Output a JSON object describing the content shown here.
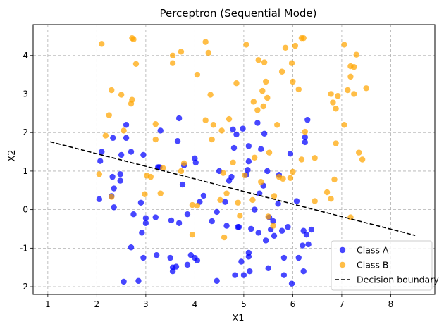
{
  "chart_data": {
    "type": "scatter",
    "title": "Perceptron (Sequential Mode)",
    "xlabel": "X1",
    "ylabel": "X2",
    "xlim": [
      0.7,
      8.9
    ],
    "ylim": [
      -2.2,
      4.8
    ],
    "xticks": [
      1,
      2,
      3,
      4,
      5,
      6,
      7,
      8
    ],
    "yticks": [
      -2,
      -1,
      0,
      1,
      2,
      3,
      4
    ],
    "grid": true,
    "legend_position": "lower-right",
    "colors": {
      "class_a": "#0000ff",
      "class_b": "#ffa500",
      "boundary": "#000000"
    },
    "series": [
      {
        "name": "Class A",
        "kind": "points",
        "points": [
          [
            2.05,
            0.27
          ],
          [
            2.07,
            1.26
          ],
          [
            2.1,
            1.5
          ],
          [
            2.3,
            0.35
          ],
          [
            2.32,
            0.85
          ],
          [
            2.33,
            1.86
          ],
          [
            2.35,
            0.55
          ],
          [
            2.35,
            0.06
          ],
          [
            2.48,
            0.92
          ],
          [
            2.48,
            0.75
          ],
          [
            2.5,
            1.42
          ],
          [
            2.55,
            -1.87
          ],
          [
            2.6,
            2.2
          ],
          [
            2.6,
            1.86
          ],
          [
            2.7,
            1.5
          ],
          [
            2.7,
            -0.98
          ],
          [
            2.75,
            -0.12
          ],
          [
            2.85,
            -1.85
          ],
          [
            2.9,
            0.18
          ],
          [
            2.92,
            -0.6
          ],
          [
            2.95,
            -1.25
          ],
          [
            2.95,
            1.42
          ],
          [
            3.0,
            -0.35
          ],
          [
            3.0,
            -0.22
          ],
          [
            3.2,
            -0.2
          ],
          [
            3.22,
            -1.18
          ],
          [
            3.25,
            1.1
          ],
          [
            3.28,
            1.1
          ],
          [
            3.3,
            2.05
          ],
          [
            3.5,
            -1.25
          ],
          [
            3.52,
            -0.28
          ],
          [
            3.55,
            -1.5
          ],
          [
            3.55,
            -1.6
          ],
          [
            3.62,
            -1.48
          ],
          [
            3.65,
            1.78
          ],
          [
            3.68,
            2.37
          ],
          [
            3.68,
            -0.35
          ],
          [
            3.75,
            0.65
          ],
          [
            3.78,
            1.15
          ],
          [
            3.85,
            -1.43
          ],
          [
            3.85,
            -0.12
          ],
          [
            3.92,
            -1.18
          ],
          [
            4.0,
            -1.25
          ],
          [
            4.0,
            1.33
          ],
          [
            4.02,
            1.22
          ],
          [
            4.05,
            -1.32
          ],
          [
            4.1,
            0.2
          ],
          [
            4.18,
            0.36
          ],
          [
            4.35,
            -0.3
          ],
          [
            4.45,
            -0.06
          ],
          [
            4.45,
            -1.85
          ],
          [
            4.5,
            1.0
          ],
          [
            4.62,
            0.2
          ],
          [
            4.65,
            -0.42
          ],
          [
            4.7,
            0.75
          ],
          [
            4.75,
            0.85
          ],
          [
            4.78,
            2.08
          ],
          [
            4.8,
            1.6
          ],
          [
            4.82,
            -1.7
          ],
          [
            4.85,
            1.95
          ],
          [
            4.88,
            -0.45
          ],
          [
            4.9,
            -0.45
          ],
          [
            4.95,
            -1.35
          ],
          [
            4.98,
            2.1
          ],
          [
            5.0,
            -1.7
          ],
          [
            5.05,
            0.9
          ],
          [
            5.08,
            1.03
          ],
          [
            5.1,
            1.65
          ],
          [
            5.1,
            1.25
          ],
          [
            5.1,
            -1.12
          ],
          [
            5.1,
            -1.22
          ],
          [
            5.12,
            -1.6
          ],
          [
            5.15,
            -0.5
          ],
          [
            5.22,
            0.0
          ],
          [
            5.28,
            2.25
          ],
          [
            5.3,
            -0.6
          ],
          [
            5.32,
            0.42
          ],
          [
            5.35,
            1.57
          ],
          [
            5.4,
            0.62
          ],
          [
            5.42,
            1.97
          ],
          [
            5.45,
            -0.8
          ],
          [
            5.48,
            1.0
          ],
          [
            5.5,
            -1.52
          ],
          [
            5.52,
            -0.2
          ],
          [
            5.55,
            -0.52
          ],
          [
            5.6,
            -0.3
          ],
          [
            5.62,
            -0.68
          ],
          [
            5.7,
            0.15
          ],
          [
            5.72,
            0.9
          ],
          [
            5.78,
            -0.55
          ],
          [
            5.82,
            -1.25
          ],
          [
            5.82,
            -1.7
          ],
          [
            5.9,
            -0.45
          ],
          [
            5.95,
            1.45
          ],
          [
            5.98,
            -1.92
          ],
          [
            6.08,
            0.22
          ],
          [
            6.12,
            -1.25
          ],
          [
            6.2,
            -0.93
          ],
          [
            6.22,
            -0.55
          ],
          [
            6.22,
            -1.6
          ],
          [
            6.25,
            1.88
          ],
          [
            6.25,
            1.75
          ],
          [
            6.28,
            -0.65
          ],
          [
            6.3,
            2.33
          ],
          [
            6.32,
            -0.9
          ],
          [
            6.38,
            -0.52
          ]
        ]
      },
      {
        "name": "Class B",
        "kind": "points",
        "points": [
          [
            2.05,
            0.92
          ],
          [
            2.1,
            4.3
          ],
          [
            2.18,
            1.92
          ],
          [
            2.25,
            2.45
          ],
          [
            2.3,
            3.1
          ],
          [
            2.3,
            0.33
          ],
          [
            2.5,
            2.98
          ],
          [
            2.55,
            2.05
          ],
          [
            2.7,
            2.75
          ],
          [
            2.72,
            4.45
          ],
          [
            2.72,
            2.85
          ],
          [
            2.75,
            4.42
          ],
          [
            2.8,
            3.78
          ],
          [
            2.98,
            0.4
          ],
          [
            3.02,
            0.88
          ],
          [
            3.1,
            0.85
          ],
          [
            3.2,
            1.82
          ],
          [
            3.2,
            2.22
          ],
          [
            3.3,
            0.42
          ],
          [
            3.35,
            1.08
          ],
          [
            3.55,
            4.0
          ],
          [
            3.55,
            3.8
          ],
          [
            3.72,
            4.1
          ],
          [
            3.72,
            1.0
          ],
          [
            3.78,
            1.2
          ],
          [
            3.95,
            0.12
          ],
          [
            3.95,
            -0.65
          ],
          [
            4.05,
            3.5
          ],
          [
            4.05,
            0.1
          ],
          [
            4.22,
            2.32
          ],
          [
            4.22,
            4.35
          ],
          [
            4.28,
            4.07
          ],
          [
            4.32,
            2.98
          ],
          [
            4.35,
            1.82
          ],
          [
            4.38,
            2.2
          ],
          [
            4.52,
            0.25
          ],
          [
            4.55,
            2.05
          ],
          [
            4.58,
            0.95
          ],
          [
            4.6,
            -0.72
          ],
          [
            4.65,
            0.42
          ],
          [
            4.7,
            2.35
          ],
          [
            4.78,
            1.22
          ],
          [
            4.85,
            3.28
          ],
          [
            4.88,
            0.18
          ],
          [
            4.92,
            -0.16
          ],
          [
            5.02,
            0.89
          ],
          [
            5.05,
            4.28
          ],
          [
            5.18,
            0.25
          ],
          [
            5.2,
            2.8
          ],
          [
            5.22,
            1.35
          ],
          [
            5.28,
            2.58
          ],
          [
            5.3,
            3.88
          ],
          [
            5.35,
            0.72
          ],
          [
            5.38,
            3.08
          ],
          [
            5.4,
            2.68
          ],
          [
            5.42,
            3.82
          ],
          [
            5.45,
            3.32
          ],
          [
            5.48,
            2.9
          ],
          [
            5.5,
            -0.18
          ],
          [
            5.52,
            1.48
          ],
          [
            5.6,
            -0.42
          ],
          [
            5.62,
            0.35
          ],
          [
            5.68,
            2.2
          ],
          [
            5.72,
            0.85
          ],
          [
            5.78,
            3.58
          ],
          [
            5.8,
            0.8
          ],
          [
            5.85,
            4.2
          ],
          [
            5.95,
            0.82
          ],
          [
            5.98,
            3.8
          ],
          [
            6.0,
            3.32
          ],
          [
            6.0,
            0.98
          ],
          [
            6.05,
            4.25
          ],
          [
            6.12,
            3.12
          ],
          [
            6.18,
            4.45
          ],
          [
            6.18,
            1.3
          ],
          [
            6.22,
            4.45
          ],
          [
            6.25,
            2.02
          ],
          [
            6.45,
            0.22
          ],
          [
            6.45,
            1.34
          ],
          [
            6.7,
            0.45
          ],
          [
            6.78,
            3.0
          ],
          [
            6.78,
            0.28
          ],
          [
            6.82,
            2.78
          ],
          [
            6.85,
            0.78
          ],
          [
            6.88,
            2.62
          ],
          [
            6.88,
            1.72
          ],
          [
            6.92,
            2.95
          ],
          [
            7.05,
            4.28
          ],
          [
            7.05,
            2.2
          ],
          [
            7.12,
            3.1
          ],
          [
            7.18,
            3.72
          ],
          [
            7.18,
            3.45
          ],
          [
            7.18,
            -0.2
          ],
          [
            7.25,
            3.7
          ],
          [
            7.25,
            3.0
          ],
          [
            7.3,
            4.02
          ],
          [
            7.35,
            1.48
          ],
          [
            7.42,
            1.3
          ],
          [
            7.5,
            3.15
          ]
        ]
      },
      {
        "name": "Decision boundary",
        "kind": "line",
        "points": [
          [
            1.05,
            1.76
          ],
          [
            8.5,
            -0.67
          ]
        ]
      }
    ]
  }
}
